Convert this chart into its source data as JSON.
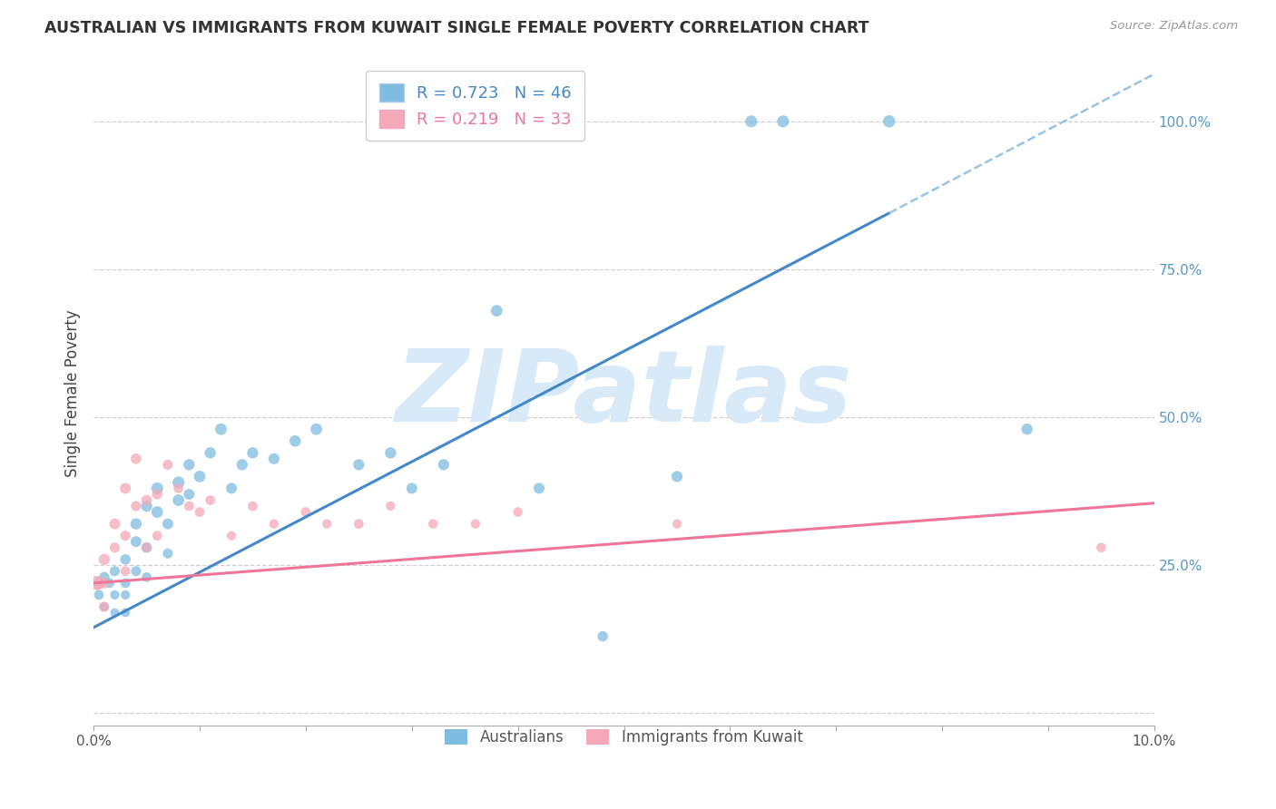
{
  "title": "AUSTRALIAN VS IMMIGRANTS FROM KUWAIT SINGLE FEMALE POVERTY CORRELATION CHART",
  "source": "Source: ZipAtlas.com",
  "ylabel": "Single Female Poverty",
  "right_yticks": [
    0.0,
    0.25,
    0.5,
    0.75,
    1.0
  ],
  "right_yticklabels": [
    "",
    "25.0%",
    "50.0%",
    "75.0%",
    "100.0%"
  ],
  "xlim": [
    0.0,
    0.1
  ],
  "ylim": [
    -0.02,
    1.1
  ],
  "blue_R": 0.723,
  "blue_N": 46,
  "pink_R": 0.219,
  "pink_N": 33,
  "blue_color": "#7fbde0",
  "pink_color": "#f4a8b8",
  "blue_line_color": "#4488cc",
  "pink_line_color": "#ee7799",
  "dashed_line_color": "#99c4e8",
  "watermark_text": "ZIPatlas",
  "watermark_color": "#d8eaf8",
  "aus_points_x": [
    0.0005,
    0.001,
    0.001,
    0.0015,
    0.002,
    0.002,
    0.002,
    0.003,
    0.003,
    0.003,
    0.003,
    0.004,
    0.004,
    0.004,
    0.005,
    0.005,
    0.005,
    0.006,
    0.006,
    0.007,
    0.007,
    0.008,
    0.008,
    0.009,
    0.009,
    0.01,
    0.011,
    0.012,
    0.013,
    0.014,
    0.015,
    0.017,
    0.019,
    0.021,
    0.025,
    0.028,
    0.03,
    0.033,
    0.038,
    0.042,
    0.048,
    0.055,
    0.062,
    0.065,
    0.075,
    0.088
  ],
  "aus_points_y": [
    0.2,
    0.23,
    0.18,
    0.22,
    0.24,
    0.2,
    0.17,
    0.26,
    0.22,
    0.2,
    0.17,
    0.29,
    0.32,
    0.24,
    0.35,
    0.28,
    0.23,
    0.34,
    0.38,
    0.32,
    0.27,
    0.36,
    0.39,
    0.42,
    0.37,
    0.4,
    0.44,
    0.48,
    0.38,
    0.42,
    0.44,
    0.43,
    0.46,
    0.48,
    0.42,
    0.44,
    0.38,
    0.42,
    0.68,
    0.38,
    0.13,
    0.4,
    1.0,
    1.0,
    1.0,
    0.48
  ],
  "aus_sizes": [
    60,
    70,
    55,
    60,
    65,
    55,
    50,
    70,
    60,
    55,
    50,
    75,
    80,
    65,
    80,
    70,
    60,
    85,
    90,
    75,
    65,
    85,
    90,
    80,
    75,
    85,
    80,
    85,
    75,
    80,
    80,
    78,
    82,
    85,
    78,
    80,
    75,
    78,
    85,
    75,
    70,
    78,
    90,
    90,
    95,
    80
  ],
  "kuw_points_x": [
    0.0003,
    0.0005,
    0.001,
    0.001,
    0.001,
    0.002,
    0.002,
    0.003,
    0.003,
    0.003,
    0.004,
    0.004,
    0.005,
    0.005,
    0.006,
    0.006,
    0.007,
    0.008,
    0.009,
    0.01,
    0.011,
    0.013,
    0.015,
    0.017,
    0.02,
    0.022,
    0.025,
    0.028,
    0.032,
    0.036,
    0.04,
    0.055,
    0.095
  ],
  "kuw_points_y": [
    0.22,
    0.22,
    0.26,
    0.22,
    0.18,
    0.32,
    0.28,
    0.38,
    0.3,
    0.24,
    0.43,
    0.35,
    0.36,
    0.28,
    0.37,
    0.3,
    0.42,
    0.38,
    0.35,
    0.34,
    0.36,
    0.3,
    0.35,
    0.32,
    0.34,
    0.32,
    0.32,
    0.35,
    0.32,
    0.32,
    0.34,
    0.32,
    0.28
  ],
  "kuw_sizes": [
    130,
    100,
    80,
    70,
    65,
    75,
    65,
    75,
    65,
    60,
    70,
    65,
    70,
    60,
    65,
    60,
    65,
    60,
    60,
    60,
    60,
    55,
    60,
    55,
    60,
    55,
    60,
    55,
    58,
    55,
    58,
    55,
    58
  ],
  "blue_line_x0": 0.0,
  "blue_line_y0": 0.145,
  "blue_line_x1": 0.075,
  "blue_line_y1": 0.845,
  "dashed_line_x0": 0.075,
  "dashed_line_y0": 0.845,
  "dashed_line_x1": 0.1,
  "dashed_line_y1": 1.08,
  "pink_line_x0": 0.0,
  "pink_line_x1": 0.1,
  "pink_line_y0": 0.22,
  "pink_line_y1": 0.355,
  "grid_yticks": [
    0.0,
    0.25,
    0.5,
    0.75,
    1.0
  ],
  "xtick_positions": [
    0.0,
    0.01,
    0.02,
    0.03,
    0.04,
    0.05,
    0.06,
    0.07,
    0.08,
    0.09,
    0.1
  ]
}
